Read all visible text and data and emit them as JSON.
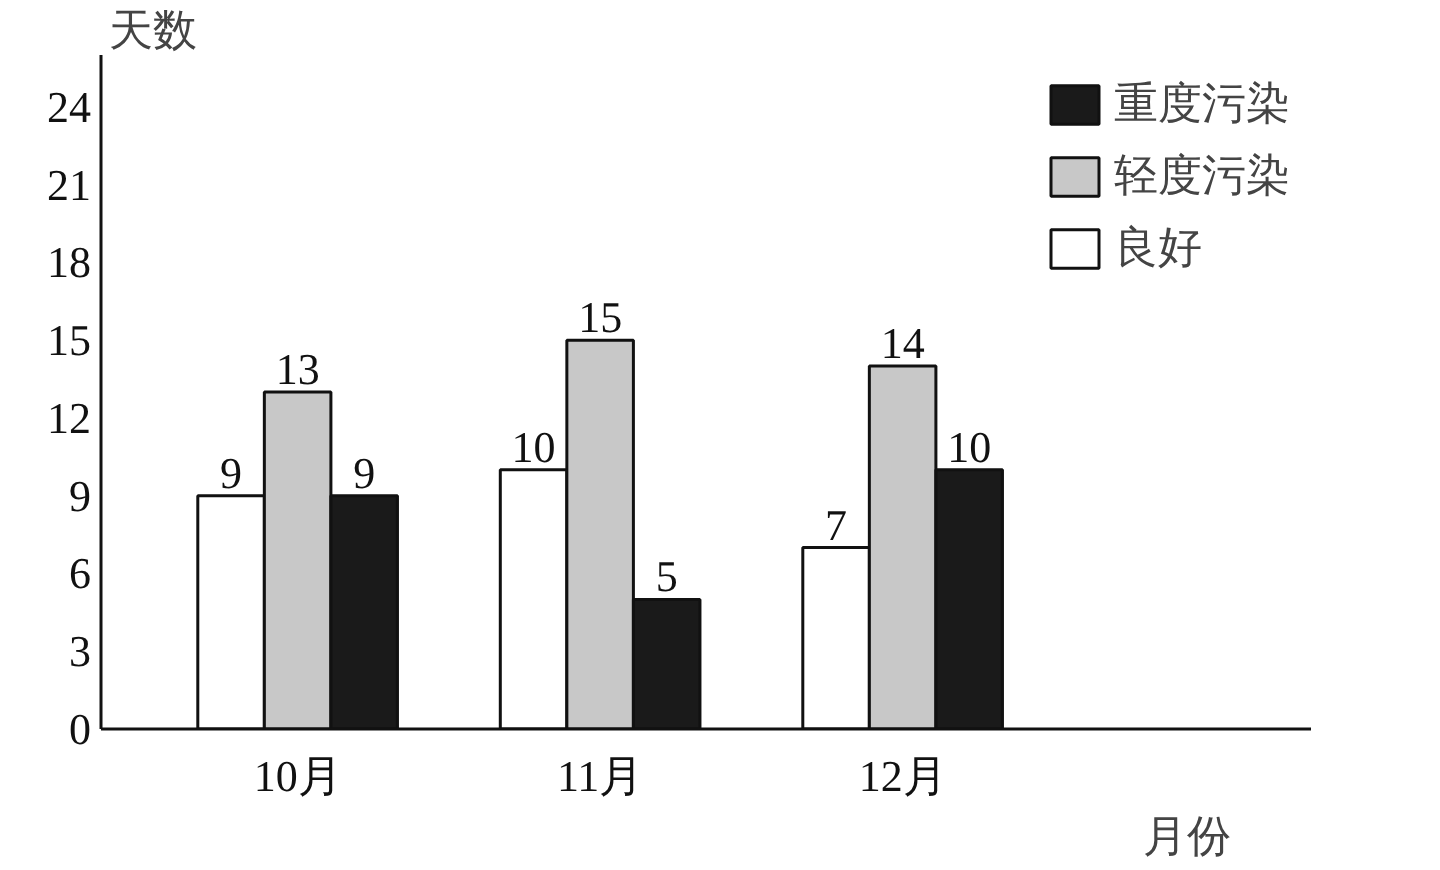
{
  "chart_data": {
    "type": "bar",
    "xlabel": "月份",
    "ylabel": "天数",
    "categories": [
      "10月",
      "11月",
      "12月"
    ],
    "series": [
      {
        "name": "良好",
        "color": "#ffffff",
        "values": [
          9,
          10,
          7
        ]
      },
      {
        "name": "轻度污染",
        "color": "#c8c8c8",
        "values": [
          13,
          15,
          14
        ]
      },
      {
        "name": "重度污染",
        "color": "#1a1a1a",
        "values": [
          9,
          5,
          10
        ]
      }
    ],
    "ylim": [
      0,
      26
    ],
    "yticks": [
      0,
      3,
      6,
      9,
      12,
      15,
      18,
      21,
      24
    ],
    "grid": false,
    "legend": "top right",
    "data_labels": true
  }
}
